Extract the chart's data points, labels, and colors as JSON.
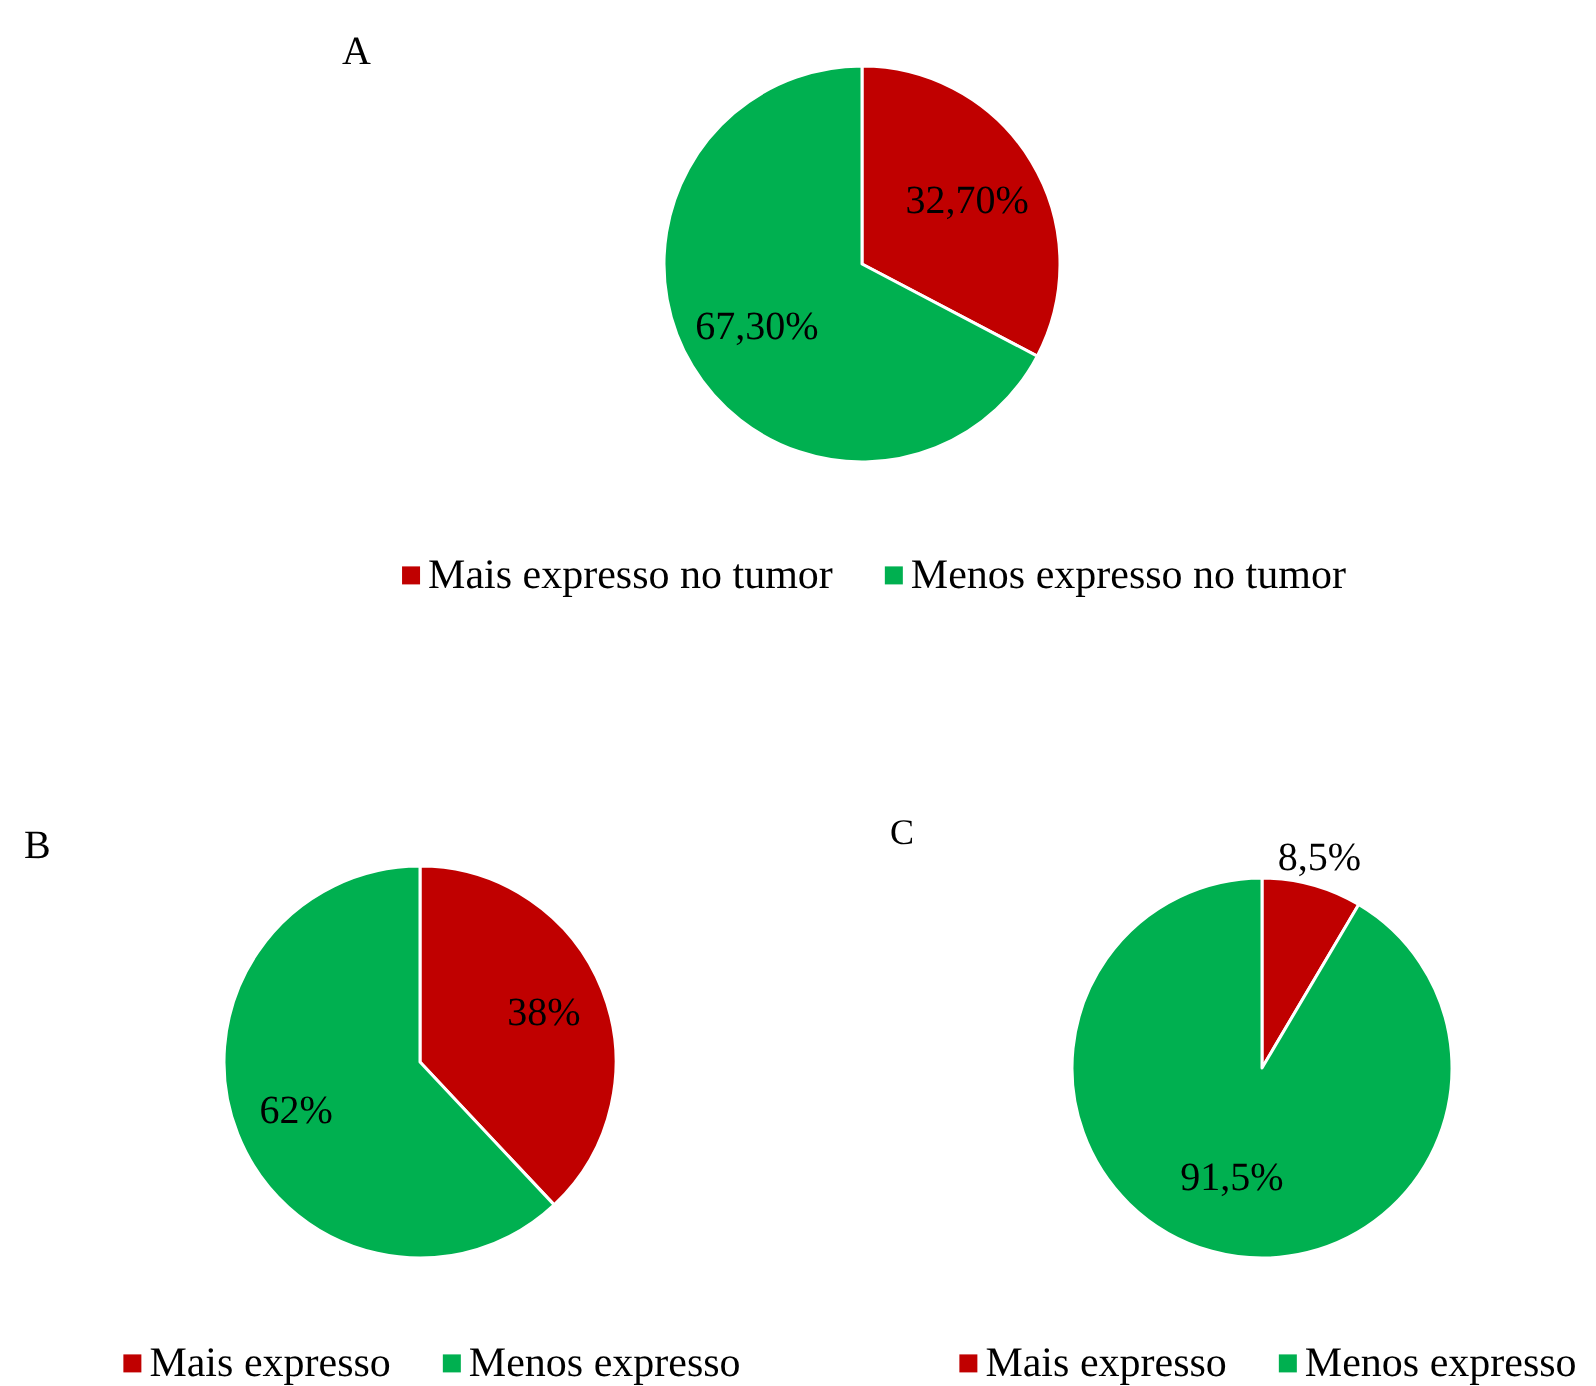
{
  "chart_data": [
    {
      "type": "pie",
      "title": "A",
      "categories": [
        "Mais expresso no tumor",
        "Menos expresso no tumor"
      ],
      "values": [
        32.7,
        67.3
      ],
      "colors": [
        "#c00000",
        "#00b050"
      ],
      "value_labels": [
        "32,70%",
        "67,30%"
      ],
      "legend": "bottom"
    },
    {
      "type": "pie",
      "title": "B",
      "categories": [
        "Mais expresso",
        "Menos expresso"
      ],
      "values": [
        38,
        62
      ],
      "colors": [
        "#c00000",
        "#00b050"
      ],
      "value_labels": [
        "38%",
        "62%"
      ],
      "legend": "bottom"
    },
    {
      "type": "pie",
      "title": "C",
      "categories": [
        "Mais expresso",
        "Menos expresso"
      ],
      "values": [
        8.5,
        91.5
      ],
      "colors": [
        "#c00000",
        "#00b050"
      ],
      "value_labels": [
        "8,5%",
        "91,5%"
      ],
      "legend": "bottom"
    }
  ]
}
